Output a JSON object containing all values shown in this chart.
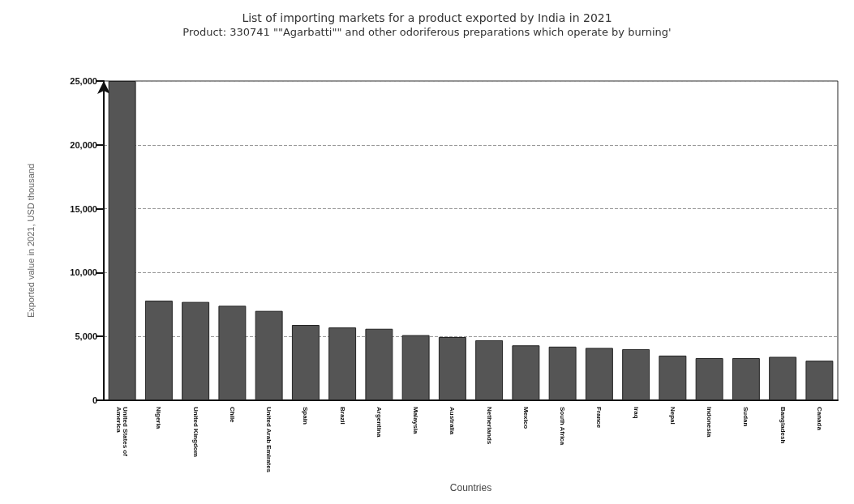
{
  "chart_data": {
    "type": "bar",
    "title": "List of importing markets for a product exported by India in 2021",
    "subtitle": "Product: 330741 \"\"Agarbatti\"\" and other odoriferous preparations which operate by burning'",
    "xlabel": "Countries",
    "ylabel": "Exported value in 2021, USD thousand",
    "categories": [
      "United States of America",
      "Nigeria",
      "United Kingdom",
      "Chile",
      "United Arab Emirates",
      "Spain",
      "Brazil",
      "Argentina",
      "Malaysia",
      "Australia",
      "Netherlands",
      "Mexico",
      "South Africa",
      "France",
      "Iraq",
      "Nepal",
      "Indonesia",
      "Sudan",
      "Bangladesh",
      "Canada"
    ],
    "values": [
      25000,
      7800,
      7700,
      7400,
      7000,
      5900,
      5700,
      5600,
      5100,
      4950,
      4700,
      4300,
      4200,
      4100,
      4000,
      3500,
      3300,
      3300,
      3400,
      3100
    ],
    "color": "#555555",
    "ylim": [
      0,
      25000
    ],
    "yticks": [
      {
        "value": 0,
        "label": "0"
      },
      {
        "value": 5000,
        "label": "5,000"
      },
      {
        "value": 10000,
        "label": "10,000"
      },
      {
        "value": 15000,
        "label": "15,000"
      },
      {
        "value": 20000,
        "label": "20,000"
      },
      {
        "value": 25000,
        "label": "25,000"
      }
    ],
    "grid": "y"
  }
}
